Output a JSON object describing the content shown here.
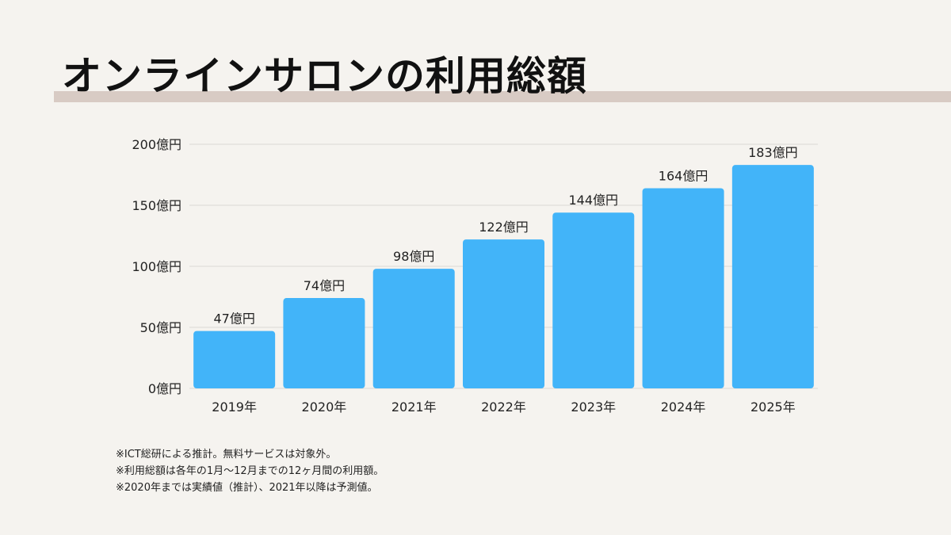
{
  "title": "オンラインサロンの利用総額",
  "colors": {
    "background": "#f5f3ef",
    "title_band": "#d8cbc4",
    "bar": "#42b4f9",
    "grid": "#dcdad6",
    "text": "#222222"
  },
  "chart_data": {
    "type": "bar",
    "categories": [
      "2019年",
      "2020年",
      "2021年",
      "2022年",
      "2023年",
      "2024年",
      "2025年"
    ],
    "values": [
      47,
      74,
      98,
      122,
      144,
      164,
      183
    ],
    "value_labels": [
      "47億円",
      "74億円",
      "98億円",
      "122億円",
      "144億円",
      "164億円",
      "183億円"
    ],
    "yticks": [
      0,
      50,
      100,
      150,
      200
    ],
    "ytick_labels": [
      "0億円",
      "50億円",
      "100億円",
      "150億円",
      "200億円"
    ],
    "ylim": [
      0,
      200
    ],
    "grid": true,
    "title": "",
    "xlabel": "",
    "ylabel": ""
  },
  "notes": [
    "※ICT総研による推計。無料サービスは対象外。",
    "※利用総額は各年の1月〜12月までの12ヶ月間の利用額。",
    "※2020年までは実績値（推計）、2021年以降は予測値。"
  ]
}
